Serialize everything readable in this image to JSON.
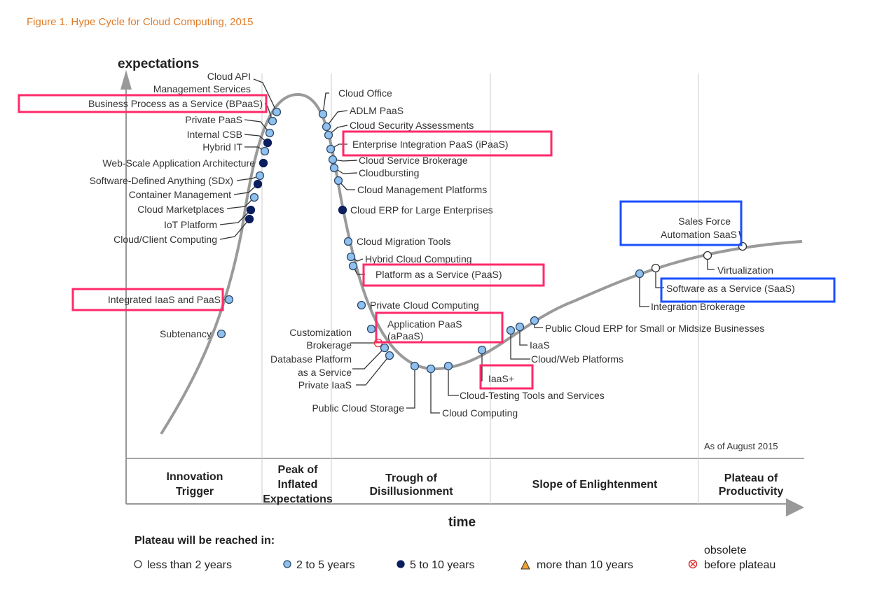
{
  "title": "Figure 1. Hype Cycle for Cloud Computing, 2015",
  "axes": {
    "y_label": "expectations",
    "x_label": "time"
  },
  "as_of": "As of August 2015",
  "phases": [
    {
      "l1": "Innovation",
      "l2": "Trigger"
    },
    {
      "l1": "Peak of",
      "l2": "Inflated",
      "l3": "Expectations"
    },
    {
      "l1": "Trough of",
      "l2": "Disillusionment"
    },
    {
      "l1": "Slope of Enlightenment"
    },
    {
      "l1": "Plateau of",
      "l2": "Productivity"
    }
  ],
  "legend": {
    "title": "Plateau will be reached in:",
    "items": [
      "less than 2 years",
      "2 to 5 years",
      "5 to 10 years",
      "more than 10 years"
    ],
    "obsolete_l1": "obsolete",
    "obsolete_l2": "before plateau"
  },
  "colors": {
    "title": "#e07b28",
    "highlight_pink": "#ff2a6a",
    "highlight_blue": "#1a4fff",
    "light": "#8fc0ee",
    "dark": "#0b1e5e"
  },
  "technologies": {
    "cloud_api_1": "Cloud API",
    "cloud_api_2": "Management Services",
    "bpaas": "Business Process as a Service (BPaaS)",
    "private_paas": "Private PaaS",
    "internal_csb": "Internal CSB",
    "hybrid_it": "Hybrid IT",
    "web_scale": "Web-Scale Application Architecture",
    "sdx": "Software-Defined Anything (SDx)",
    "container": "Container Management",
    "marketplaces": "Cloud Marketplaces",
    "iot": "IoT Platform",
    "cloud_client": "Cloud/Client Computing",
    "integrated_iaas_paas": "Integrated IaaS and PaaS",
    "subtenancy": "Subtenancy",
    "cloud_office": "Cloud Office",
    "adlm_paas": "ADLM PaaS",
    "security_assess": "Cloud Security Assessments",
    "ipaas": "Enterprise Integration PaaS (iPaaS)",
    "service_brokerage": "Cloud Service Brokerage",
    "cloudbursting": "Cloudbursting",
    "mgmt_platforms": "Cloud Management Platforms",
    "cloud_erp_large": "Cloud ERP for Large Enterprises",
    "migration_tools": "Cloud Migration Tools",
    "hybrid_cloud": "Hybrid Cloud Computing",
    "paas": "Platform as a Service (PaaS)",
    "private_cloud": "Private Cloud Computing",
    "apaas_1": "Application PaaS",
    "apaas_2": "(aPaaS)",
    "custom_brokerage_1": "Customization",
    "custom_brokerage_2": "Brokerage",
    "dbpaas_1": "Database Platform",
    "dbpaas_2": "as a Service",
    "private_iaas": "Private IaaS",
    "public_storage": "Public Cloud Storage",
    "cloud_computing": "Cloud Computing",
    "cloud_testing": "Cloud-Testing Tools and Services",
    "iaas_plus": "IaaS+",
    "cloud_web": "Cloud/Web Platforms",
    "iaas": "IaaS",
    "public_erp": "Public Cloud ERP for Small or Midsize Businesses",
    "integration_brokerage": "Integration Brokerage",
    "saas": "Software as a Service (SaaS)",
    "virtualization": "Virtualization",
    "sfa_1": "Sales Force",
    "sfa_2": "Automation SaaS"
  }
}
